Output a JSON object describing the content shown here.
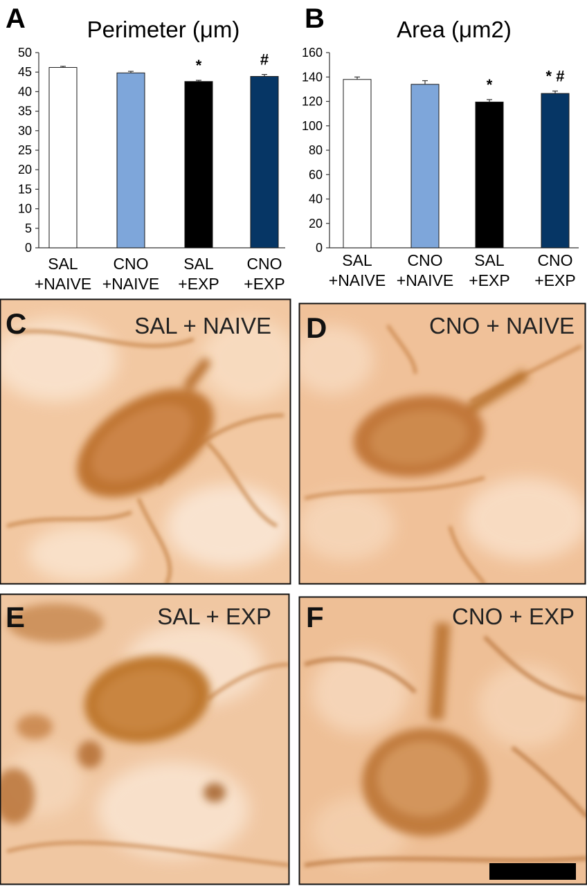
{
  "colors": {
    "bar_fills": [
      "#ffffff",
      "#7ea6da",
      "#000000",
      "#063665"
    ],
    "bar_stroke": "#1a1a1a",
    "photo_background": "#efc39b",
    "stain": "#b06a2c",
    "scale_bar": "#000000"
  },
  "chart_data": [
    {
      "type": "bar",
      "panel_label": "A",
      "title": "Perimeter (μm)",
      "categories": [
        [
          "SAL",
          "+NAIVE"
        ],
        [
          "CNO",
          "+NAIVE"
        ],
        [
          "SAL",
          "+EXP"
        ],
        [
          "CNO",
          "+EXP"
        ]
      ],
      "values": [
        46.2,
        44.8,
        42.6,
        43.9
      ],
      "error": [
        0.3,
        0.4,
        0.3,
        0.5
      ],
      "significance": [
        "",
        "",
        "*",
        "#"
      ],
      "ylim": [
        0,
        50
      ],
      "yticks": [
        0,
        5,
        10,
        15,
        20,
        25,
        30,
        35,
        40,
        45,
        50
      ],
      "grid": false
    },
    {
      "type": "bar",
      "panel_label": "B",
      "title": "Area (μm2)",
      "categories": [
        [
          "SAL",
          "+NAIVE"
        ],
        [
          "CNO",
          "+NAIVE"
        ],
        [
          "SAL",
          "+EXP"
        ],
        [
          "CNO",
          "+EXP"
        ]
      ],
      "values": [
        138,
        134,
        119.5,
        126.5
      ],
      "error": [
        2,
        3,
        2,
        2
      ],
      "significance": [
        "",
        "",
        "*",
        "* #"
      ],
      "ylim": [
        0,
        160
      ],
      "yticks": [
        0,
        20,
        40,
        60,
        80,
        100,
        120,
        140,
        160
      ],
      "grid": false
    }
  ],
  "photos": [
    {
      "letter": "C",
      "label": "SAL + NAIVE"
    },
    {
      "letter": "D",
      "label": "CNO + NAIVE"
    },
    {
      "letter": "E",
      "label": "SAL + EXP"
    },
    {
      "letter": "F",
      "label": "CNO + EXP"
    }
  ]
}
